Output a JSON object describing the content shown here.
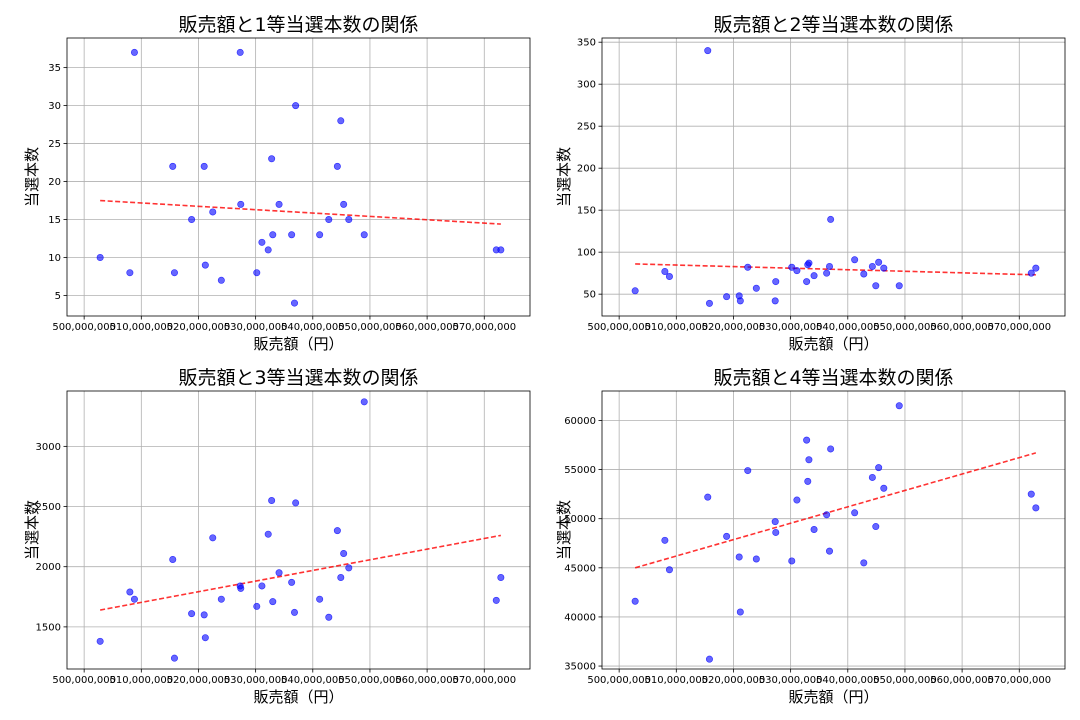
{
  "chart_data": [
    {
      "type": "scatter",
      "title": "販売額と1等当選本数の関係",
      "xlabel": "販売額（円）",
      "ylabel": "当選本数",
      "xlim": [
        497000000,
        578000000
      ],
      "ylim": [
        2.3,
        38.9
      ],
      "xticks": [
        500000000,
        510000000,
        520000000,
        530000000,
        540000000,
        550000000,
        560000000,
        570000000
      ],
      "xtick_labels": [
        "500,000,000",
        "510,000,000",
        "520,000,000",
        "530,000,000",
        "540,000,000",
        "550,000,000",
        "560,000,000",
        "570,000,000"
      ],
      "yticks": [
        5,
        10,
        15,
        20,
        25,
        30,
        35
      ],
      "ytick_labels": [
        "5",
        "10",
        "15",
        "20",
        "25",
        "30",
        "35"
      ],
      "grid": true,
      "point_color": "#0000ff",
      "trend_color": "#ff0000",
      "points": [
        [
          502800000,
          10
        ],
        [
          508000000,
          8
        ],
        [
          508800000,
          37
        ],
        [
          515500000,
          22
        ],
        [
          515800000,
          8
        ],
        [
          518800000,
          15
        ],
        [
          521000000,
          22
        ],
        [
          521200000,
          9
        ],
        [
          522500000,
          16
        ],
        [
          524000000,
          7
        ],
        [
          527300000,
          37
        ],
        [
          527400000,
          17
        ],
        [
          530200000,
          8
        ],
        [
          531100000,
          12
        ],
        [
          532200000,
          11
        ],
        [
          532800000,
          23
        ],
        [
          533000000,
          13
        ],
        [
          534100000,
          17
        ],
        [
          536300000,
          13
        ],
        [
          536800000,
          4
        ],
        [
          537000000,
          30
        ],
        [
          541200000,
          13
        ],
        [
          542800000,
          15
        ],
        [
          544300000,
          22
        ],
        [
          544900000,
          28
        ],
        [
          545400000,
          17
        ],
        [
          546300000,
          15
        ],
        [
          549000000,
          13
        ],
        [
          572100000,
          11
        ],
        [
          572900000,
          11
        ]
      ],
      "trendline": [
        [
          502800000,
          17.5
        ],
        [
          572900000,
          14.4
        ]
      ]
    },
    {
      "type": "scatter",
      "title": "販売額と2等当選本数の関係",
      "xlabel": "販売額（円）",
      "ylabel": "当選本数",
      "xlim": [
        497000000,
        578000000
      ],
      "ylim": [
        24,
        355
      ],
      "xticks": [
        500000000,
        510000000,
        520000000,
        530000000,
        540000000,
        550000000,
        560000000,
        570000000
      ],
      "xtick_labels": [
        "500,000,000",
        "510,000,000",
        "520,000,000",
        "530,000,000",
        "540,000,000",
        "550,000,000",
        "560,000,000",
        "570,000,000"
      ],
      "yticks": [
        50,
        100,
        150,
        200,
        250,
        300,
        350
      ],
      "ytick_labels": [
        "50",
        "100",
        "150",
        "200",
        "250",
        "300",
        "350"
      ],
      "grid": true,
      "point_color": "#0000ff",
      "trend_color": "#ff0000",
      "points": [
        [
          502800000,
          54
        ],
        [
          508000000,
          77
        ],
        [
          508800000,
          71
        ],
        [
          515500000,
          340
        ],
        [
          515800000,
          39
        ],
        [
          518800000,
          47
        ],
        [
          521000000,
          48
        ],
        [
          521200000,
          42
        ],
        [
          522500000,
          82
        ],
        [
          524000000,
          57
        ],
        [
          527300000,
          42
        ],
        [
          527400000,
          65
        ],
        [
          530200000,
          82
        ],
        [
          531100000,
          78
        ],
        [
          532800000,
          65
        ],
        [
          533000000,
          85
        ],
        [
          533200000,
          87
        ],
        [
          534100000,
          72
        ],
        [
          536300000,
          75
        ],
        [
          536800000,
          83
        ],
        [
          537000000,
          139
        ],
        [
          541200000,
          91
        ],
        [
          542800000,
          74
        ],
        [
          544300000,
          83
        ],
        [
          544900000,
          60
        ],
        [
          545400000,
          88
        ],
        [
          546300000,
          81
        ],
        [
          549000000,
          60
        ],
        [
          572100000,
          75
        ],
        [
          572900000,
          81
        ]
      ],
      "trendline": [
        [
          502800000,
          86
        ],
        [
          572900000,
          73
        ]
      ]
    },
    {
      "type": "scatter",
      "title": "販売額と3等当選本数の関係",
      "xlabel": "販売額（円）",
      "ylabel": "当選本数",
      "xlim": [
        497000000,
        578000000
      ],
      "ylim": [
        1150,
        3460
      ],
      "xticks": [
        500000000,
        510000000,
        520000000,
        530000000,
        540000000,
        550000000,
        560000000,
        570000000
      ],
      "xtick_labels": [
        "500,000,000",
        "510,000,000",
        "520,000,000",
        "530,000,000",
        "540,000,000",
        "550,000,000",
        "560,000,000",
        "570,000,000"
      ],
      "yticks": [
        1500,
        2000,
        2500,
        3000
      ],
      "ytick_labels": [
        "1500",
        "2000",
        "2500",
        "3000"
      ],
      "grid": true,
      "point_color": "#0000ff",
      "trend_color": "#ff0000",
      "points": [
        [
          502800000,
          1380
        ],
        [
          508000000,
          1790
        ],
        [
          508800000,
          1730
        ],
        [
          515500000,
          2060
        ],
        [
          515800000,
          1240
        ],
        [
          518800000,
          1610
        ],
        [
          521000000,
          1600
        ],
        [
          521200000,
          1410
        ],
        [
          522500000,
          2240
        ],
        [
          524000000,
          1730
        ],
        [
          527300000,
          1840
        ],
        [
          527400000,
          1820
        ],
        [
          530200000,
          1670
        ],
        [
          531100000,
          1840
        ],
        [
          532200000,
          2270
        ],
        [
          532800000,
          2550
        ],
        [
          533000000,
          1710
        ],
        [
          534100000,
          1950
        ],
        [
          536300000,
          1870
        ],
        [
          536800000,
          1620
        ],
        [
          537000000,
          2530
        ],
        [
          541200000,
          1730
        ],
        [
          542800000,
          1580
        ],
        [
          544300000,
          2300
        ],
        [
          544900000,
          1910
        ],
        [
          545400000,
          2110
        ],
        [
          546300000,
          1990
        ],
        [
          549000000,
          3370
        ],
        [
          572100000,
          1720
        ],
        [
          572900000,
          1910
        ]
      ],
      "trendline": [
        [
          502800000,
          1640
        ],
        [
          572900000,
          2260
        ]
      ]
    },
    {
      "type": "scatter",
      "title": "販売額と4等当選本数の関係",
      "xlabel": "販売額（円）",
      "ylabel": "当選本数",
      "xlim": [
        497000000,
        578000000
      ],
      "ylim": [
        34700,
        63000
      ],
      "xticks": [
        500000000,
        510000000,
        520000000,
        530000000,
        540000000,
        550000000,
        560000000,
        570000000
      ],
      "xtick_labels": [
        "500,000,000",
        "510,000,000",
        "520,000,000",
        "530,000,000",
        "540,000,000",
        "550,000,000",
        "560,000,000",
        "570,000,000"
      ],
      "yticks": [
        35000,
        40000,
        45000,
        50000,
        55000,
        60000
      ],
      "ytick_labels": [
        "35000",
        "40000",
        "45000",
        "50000",
        "55000",
        "60000"
      ],
      "grid": true,
      "point_color": "#0000ff",
      "trend_color": "#ff0000",
      "points": [
        [
          502800000,
          41600
        ],
        [
          508000000,
          47800
        ],
        [
          508800000,
          44800
        ],
        [
          515500000,
          52200
        ],
        [
          515800000,
          35700
        ],
        [
          518800000,
          48200
        ],
        [
          521000000,
          46100
        ],
        [
          521200000,
          40500
        ],
        [
          522500000,
          54900
        ],
        [
          524000000,
          45900
        ],
        [
          527300000,
          49700
        ],
        [
          527400000,
          48600
        ],
        [
          530200000,
          45700
        ],
        [
          531100000,
          51900
        ],
        [
          532800000,
          58000
        ],
        [
          533000000,
          53800
        ],
        [
          533200000,
          56000
        ],
        [
          534100000,
          48900
        ],
        [
          536300000,
          50400
        ],
        [
          536800000,
          46700
        ],
        [
          537000000,
          57100
        ],
        [
          541200000,
          50600
        ],
        [
          542800000,
          45500
        ],
        [
          544300000,
          54200
        ],
        [
          544900000,
          49200
        ],
        [
          545400000,
          55200
        ],
        [
          546300000,
          53100
        ],
        [
          549000000,
          61500
        ],
        [
          572100000,
          52500
        ],
        [
          572900000,
          51100
        ]
      ],
      "trendline": [
        [
          502800000,
          45000
        ],
        [
          572900000,
          56700
        ]
      ]
    }
  ]
}
